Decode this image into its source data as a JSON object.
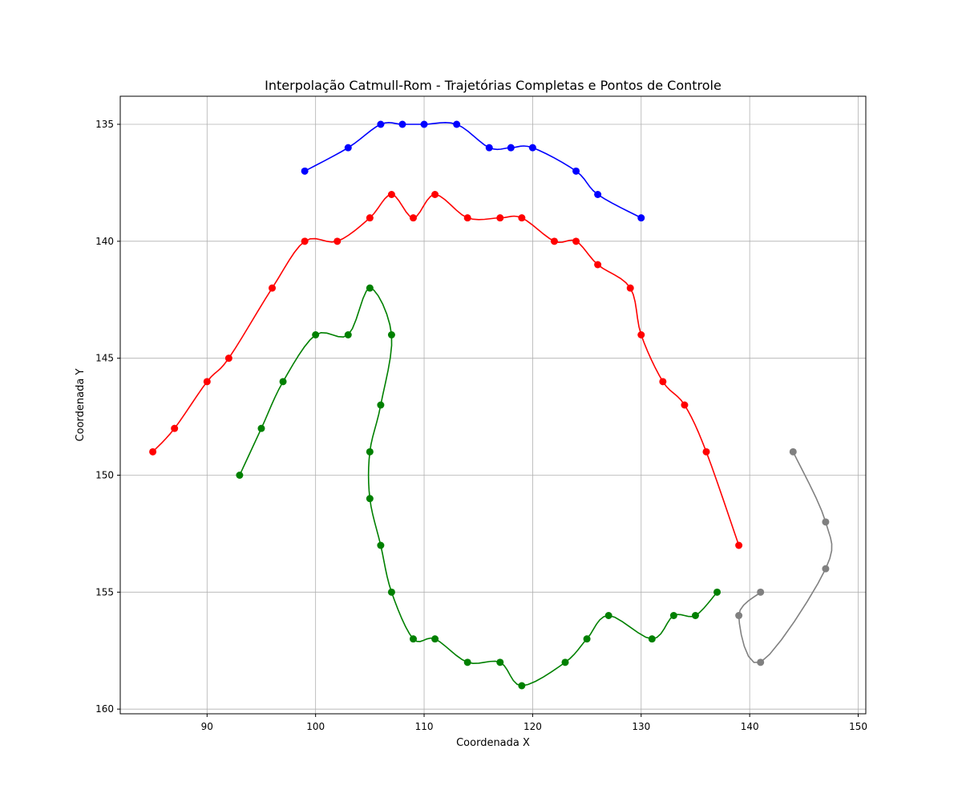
{
  "chart_data": {
    "type": "line",
    "title": "Interpolação Catmull-Rom - Trajetórias Completas e Pontos de Controle",
    "xlabel": "Coordenada X",
    "ylabel": "Coordenada Y",
    "xlim": [
      82,
      150.7
    ],
    "ylim": [
      160.2,
      133.8
    ],
    "y_inverted": true,
    "grid": true,
    "xticks": [
      90,
      100,
      110,
      120,
      130,
      140,
      150
    ],
    "yticks": [
      135,
      140,
      145,
      150,
      155,
      160
    ],
    "series": [
      {
        "color": "#0000ff",
        "x": [
          99,
          103,
          106,
          108,
          110,
          113,
          116,
          118,
          120,
          124,
          126,
          130
        ],
        "y": [
          137,
          136,
          135,
          135,
          135,
          135,
          136,
          136,
          136,
          137,
          138,
          139
        ]
      },
      {
        "color": "#ff0000",
        "x": [
          85,
          87,
          90,
          92,
          96,
          99,
          102,
          105,
          107,
          109,
          111,
          114,
          117,
          119,
          122,
          124,
          126,
          129,
          130,
          132,
          134,
          136,
          139
        ],
        "y": [
          149,
          148,
          146,
          145,
          142,
          140,
          140,
          139,
          138,
          139,
          138,
          139,
          139,
          139,
          140,
          140,
          141,
          142,
          144,
          146,
          147,
          149,
          153
        ]
      },
      {
        "color": "#008000",
        "x": [
          93,
          95,
          97,
          100,
          103,
          105,
          107,
          106,
          105,
          105,
          106,
          107,
          109,
          111,
          114,
          117,
          119,
          123,
          125,
          127,
          131,
          133,
          135,
          137
        ],
        "y": [
          150,
          148,
          146,
          144,
          144,
          142,
          144,
          147,
          149,
          151,
          153,
          155,
          157,
          157,
          158,
          158,
          159,
          158,
          157,
          156,
          157,
          156,
          156,
          155
        ]
      },
      {
        "color": "#808080",
        "x": [
          144,
          147,
          147,
          141,
          139,
          141
        ],
        "y": [
          149,
          152,
          154,
          158,
          156,
          155
        ]
      }
    ]
  }
}
